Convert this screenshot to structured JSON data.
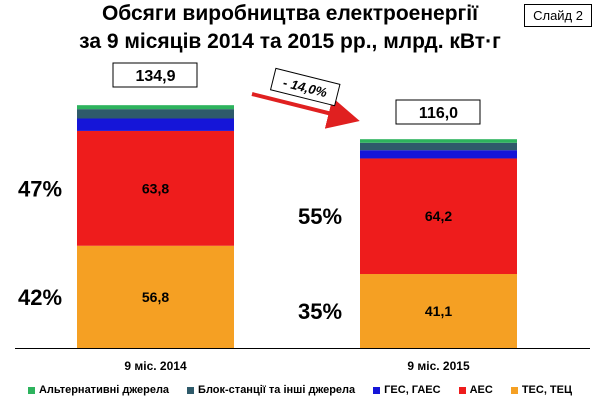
{
  "slide_label": "Слайд 2",
  "chart_data": {
    "type": "bar",
    "stacked": true,
    "title_line1": "Обсяги виробництва електроенергії",
    "title_line2": "за  9 місяців 2014 та 2015 рр., млрд. кВт·г",
    "categories": [
      "9 міс. 2014",
      "9 міс. 2015"
    ],
    "totals": [
      "134,9",
      "116,0"
    ],
    "change_label": "- 14,0%",
    "series": [
      {
        "name": "ТЕС, ТЕЦ",
        "color": "#f5a023",
        "values": [
          56.8,
          41.1
        ],
        "labels": [
          "56,8",
          "41,1"
        ],
        "shares": [
          "42%",
          "35%"
        ]
      },
      {
        "name": "АЕС",
        "color": "#ee1c1c",
        "values": [
          63.8,
          64.2
        ],
        "labels": [
          "63,8",
          "64,2"
        ],
        "shares": [
          "47%",
          "55%"
        ]
      },
      {
        "name": "ГЕС, ГАЕС",
        "color": "#1515d8",
        "values": [
          6.9,
          4.6
        ],
        "labels": [
          "",
          ""
        ],
        "shares": [
          "",
          ""
        ]
      },
      {
        "name": "Блок-станції та інші джерела",
        "color": "#2e5a6a",
        "values": [
          5.2,
          4.1
        ],
        "labels": [
          "",
          ""
        ],
        "shares": [
          "",
          ""
        ]
      },
      {
        "name": "Альтернативні джерела",
        "color": "#2db35d",
        "values": [
          2.2,
          2.0
        ],
        "labels": [
          "",
          ""
        ],
        "shares": [
          "",
          ""
        ]
      }
    ],
    "legend_order": [
      4,
      3,
      2,
      1,
      0
    ],
    "legend_position": "bottom"
  }
}
